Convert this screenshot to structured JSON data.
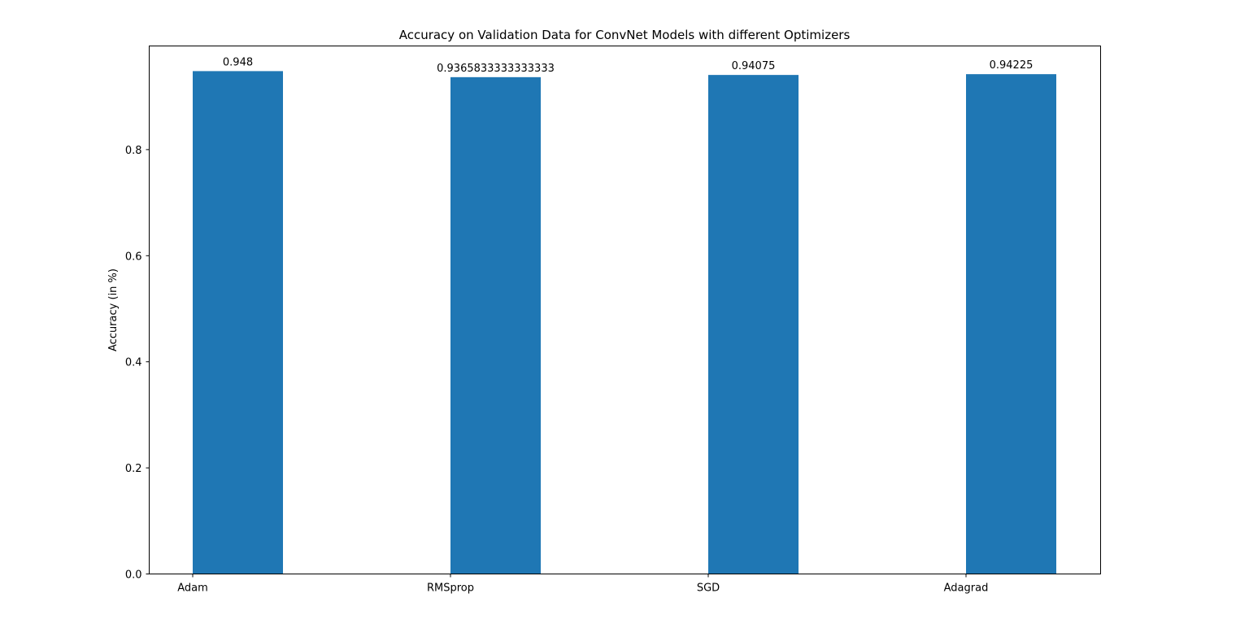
{
  "chart_data": {
    "type": "bar",
    "title": "Accuracy on Validation Data for ConvNet Models with different Optimizers",
    "xlabel": "",
    "ylabel": "Accuracy (in %)",
    "categories": [
      "Adam",
      "RMSprop",
      "SGD",
      "Adagrad"
    ],
    "values": [
      0.948,
      0.9365833333333333,
      0.94075,
      0.94225
    ],
    "data_labels": [
      "0.948",
      "0.9365833333333333",
      "0.94075",
      "0.94225"
    ],
    "ylim": [
      0,
      0.9954
    ],
    "yticks": [
      0.0,
      0.2,
      0.4,
      0.6,
      0.8
    ],
    "ytick_labels": [
      "0.0",
      "0.2",
      "0.4",
      "0.6",
      "0.8"
    ],
    "bar_color": "#1f77b4",
    "grid": false,
    "legend": "none"
  }
}
